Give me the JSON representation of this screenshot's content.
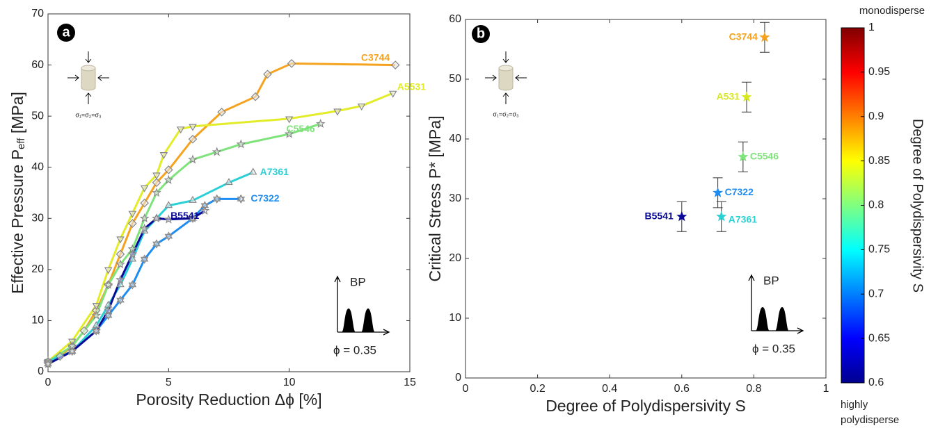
{
  "chart_data": [
    {
      "type": "line",
      "xlabel": "Porosity Reduction Δϕ [%]",
      "ylabel": [
        "Effective Pressure P",
        "eff",
        " [MPa]"
      ],
      "xlim": [
        0,
        15
      ],
      "ylim": [
        0,
        70
      ],
      "xticks": [
        0,
        5,
        10,
        15
      ],
      "yticks": [
        0,
        10,
        20,
        30,
        40,
        50,
        60,
        70
      ],
      "annotations": [
        "a",
        "BP",
        "ϕ = 0.35",
        "σ₁=σ₂=σ₃"
      ],
      "series": [
        {
          "name": "C3744",
          "color": "#f5a21e",
          "marker": "diamond",
          "x": [
            0,
            0.5,
            1,
            1.5,
            2,
            2.5,
            3,
            3.5,
            4,
            4.5,
            5,
            6,
            7.2,
            8.6,
            9.1,
            10.1,
            14.4
          ],
          "values": [
            2,
            3,
            5,
            8,
            12,
            17,
            23,
            29,
            33,
            37,
            39.5,
            45.5,
            50.8,
            53.8,
            58.2,
            60.3,
            60
          ]
        },
        {
          "name": "A5531",
          "color": "#e2ec28",
          "marker": "triangle-down",
          "x": [
            0,
            1,
            2,
            2.5,
            3,
            3.5,
            4,
            4.5,
            4.8,
            5.5,
            6,
            10,
            12,
            13,
            14.3
          ],
          "values": [
            2,
            6,
            13,
            20,
            26,
            31,
            36,
            38.5,
            42.5,
            47.5,
            48,
            49.5,
            51,
            52,
            54.5
          ]
        },
        {
          "name": "C5546",
          "color": "#7de37a",
          "marker": "star",
          "x": [
            0,
            1,
            2,
            2.5,
            3,
            3.5,
            4,
            4.5,
            5,
            6,
            7,
            8,
            10,
            11.3
          ],
          "values": [
            2,
            5,
            11,
            17,
            21,
            24,
            30,
            35,
            37.5,
            41.5,
            43,
            44.5,
            46.5,
            48.5
          ]
        },
        {
          "name": "A7361",
          "color": "#29d0d6",
          "marker": "triangle-up",
          "x": [
            0,
            1,
            2,
            2.5,
            3,
            3.5,
            4,
            4.5,
            5,
            6,
            7.5,
            8.5
          ],
          "values": [
            2,
            4,
            9,
            13,
            17,
            22,
            27.5,
            30,
            32.5,
            33.5,
            37,
            39
          ]
        },
        {
          "name": "C7322",
          "color": "#1e8cf0",
          "marker": "hexagram",
          "x": [
            0,
            1,
            2,
            2.5,
            3,
            3.5,
            4,
            4.5,
            5,
            6,
            6.5,
            7,
            8
          ],
          "values": [
            1.5,
            4,
            8,
            11,
            14,
            17,
            22,
            25,
            26.5,
            30,
            32.5,
            33.8,
            33.8
          ]
        },
        {
          "name": "B5541",
          "color": "#0a0a96",
          "marker": "star",
          "x": [
            0,
            1,
            2,
            2.5,
            3,
            3.5,
            4,
            4.5,
            5,
            6,
            6.5
          ],
          "values": [
            1.5,
            4,
            8,
            12,
            18,
            23,
            28,
            30,
            29.8,
            30,
            31.5
          ]
        }
      ]
    },
    {
      "type": "scatter",
      "xlabel": "Degree of Polydispersivity S",
      "ylabel": [
        "Critical Stress P* [MPa]"
      ],
      "xlim": [
        0,
        1
      ],
      "ylim": [
        0,
        60
      ],
      "xticks": [
        0,
        0.2,
        0.4,
        0.6,
        0.8,
        1
      ],
      "yticks": [
        0,
        10,
        20,
        30,
        40,
        50,
        60
      ],
      "annotations": [
        "b",
        "BP",
        "ϕ = 0.35",
        "σ₁=σ₂=σ₃"
      ],
      "series": [
        {
          "name": "C3744",
          "color": "#f5a21e",
          "x": [
            0.83
          ],
          "values": [
            57
          ],
          "errors": [
            2.5
          ]
        },
        {
          "name": "A531",
          "color": "#d8e81e",
          "x": [
            0.78
          ],
          "values": [
            47
          ],
          "errors": [
            2.5
          ]
        },
        {
          "name": "C5546",
          "color": "#7de37a",
          "x": [
            0.77
          ],
          "values": [
            37
          ],
          "errors": [
            2.5
          ]
        },
        {
          "name": "C7322",
          "color": "#1e8cf0",
          "x": [
            0.7
          ],
          "values": [
            31
          ],
          "errors": [
            2.5
          ]
        },
        {
          "name": "A7361",
          "color": "#29d0d6",
          "x": [
            0.71
          ],
          "values": [
            27
          ],
          "errors": [
            2.5
          ]
        },
        {
          "name": "B5541",
          "color": "#0a0a96",
          "x": [
            0.6
          ],
          "values": [
            27
          ],
          "errors": [
            2.5
          ]
        }
      ],
      "colorbar": {
        "label": "Degree of Polydispersivity S",
        "lim": [
          0.6,
          1
        ],
        "ticks": [
          0.6,
          0.65,
          0.7,
          0.75,
          0.8,
          0.85,
          0.9,
          0.95,
          1
        ],
        "top_label": "monodisperse",
        "bottom_label": [
          "highly",
          "polydisperse"
        ]
      }
    }
  ]
}
